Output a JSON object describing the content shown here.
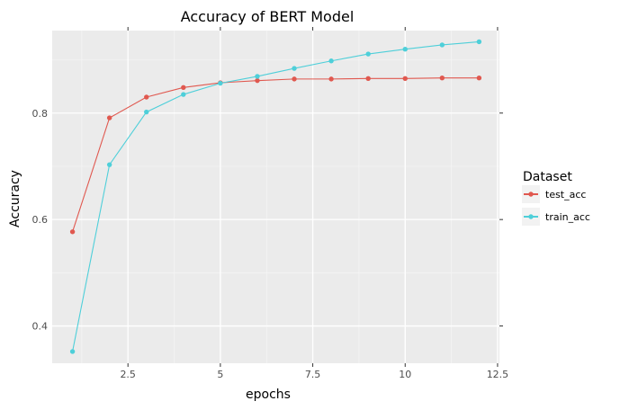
{
  "chart_data": {
    "type": "line",
    "title": "Accuracy of BERT Model",
    "xlabel": "epochs",
    "ylabel": "Accuracy",
    "xlim": [
      0.45,
      12.55
    ],
    "ylim": [
      0.33,
      0.955
    ],
    "xticks": [
      2.5,
      5,
      7.5,
      10,
      12.5
    ],
    "xtick_labels": [
      "2.5",
      "5",
      "7.5",
      "10",
      "12.5"
    ],
    "yticks": [
      0.4,
      0.6,
      0.8
    ],
    "ytick_labels": [
      "0.4",
      "0.6",
      "0.8"
    ],
    "grid": true,
    "legend": {
      "title": "Dataset",
      "position": "right"
    },
    "x": [
      1,
      2,
      3,
      4,
      5,
      6,
      7,
      8,
      9,
      10,
      11,
      12
    ],
    "series": [
      {
        "name": "test_acc",
        "color": "#e0584f",
        "values": [
          0.577,
          0.791,
          0.83,
          0.848,
          0.857,
          0.861,
          0.864,
          0.864,
          0.865,
          0.865,
          0.866,
          0.866
        ]
      },
      {
        "name": "train_acc",
        "color": "#4ecfd9",
        "values": [
          0.352,
          0.703,
          0.802,
          0.835,
          0.856,
          0.869,
          0.884,
          0.898,
          0.911,
          0.92,
          0.928,
          0.934
        ]
      }
    ]
  }
}
